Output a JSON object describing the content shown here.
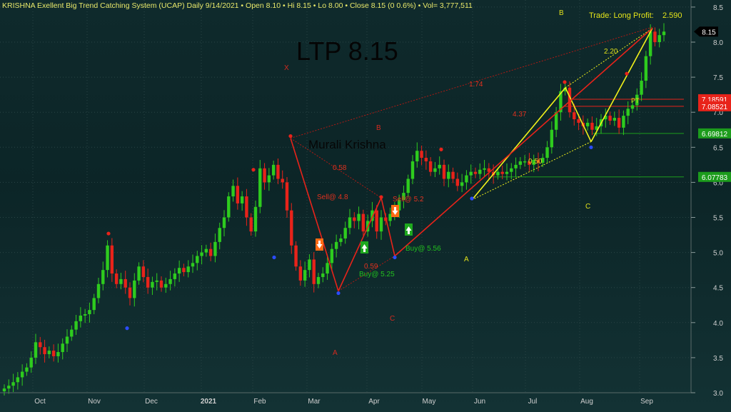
{
  "header": {
    "title": "KRISHNA Exellent Big Trend Catching System (UCAP)",
    "period": "Daily",
    "date": "9/14/2021",
    "open": "Open 8.10",
    "hi": "Hi 8.15",
    "lo": "Lo 8.00",
    "close": "Close 8.15 (0 0.6%)",
    "vol": "Vol= 3,777,511"
  },
  "ltp_text": "LTP 8.15",
  "watermark": "Murali Krishna",
  "trade_text": "Trade: Long Profit:",
  "trade_value": "2.590",
  "colors": {
    "up": "#2ecc1e",
    "down": "#e8231a",
    "pattern_red": "#e8231a",
    "pattern_yellow": "#f2f21a",
    "axis_text": "#cfcfcf"
  },
  "chart_data": {
    "type": "candlestick",
    "x_tick_labels": [
      "Oct",
      "Nov",
      "Dec",
      "2021",
      "Feb",
      "Mar",
      "Apr",
      "May",
      "Jun",
      "Jul",
      "Aug",
      "Sep"
    ],
    "y_tick_labels": [
      "3.0",
      "3.5",
      "4.0",
      "4.5",
      "5.0",
      "5.5",
      "6.0",
      "6.5",
      "7.0",
      "7.5",
      "8.0",
      "8.5"
    ],
    "ylim": [
      2.95,
      8.6
    ],
    "last_price": 8.15,
    "last_price_label": "8.15",
    "price_markers": [
      {
        "label": "7.18591",
        "value": 7.18591,
        "color": "#e8231a"
      },
      {
        "label": "7.08521",
        "value": 7.08521,
        "color": "#e8231a"
      },
      {
        "label": "6.69812",
        "value": 6.69812,
        "color": "#1c9c1c"
      },
      {
        "label": "6.07783",
        "value": 6.07783,
        "color": "#1c9c1c"
      }
    ],
    "close_series": [
      3.06,
      3.1,
      3.15,
      3.22,
      3.3,
      3.36,
      3.5,
      3.72,
      3.65,
      3.55,
      3.6,
      3.52,
      3.58,
      3.7,
      3.8,
      3.9,
      4.02,
      4.1,
      4.12,
      4.18,
      4.35,
      4.55,
      4.75,
      5.1,
      4.7,
      4.55,
      4.62,
      4.5,
      4.35,
      4.6,
      4.8,
      4.65,
      4.5,
      4.58,
      4.6,
      4.5,
      4.55,
      4.62,
      4.7,
      4.78,
      4.72,
      4.8,
      4.85,
      4.95,
      5.0,
      5.05,
      4.95,
      5.15,
      5.35,
      5.5,
      5.8,
      5.95,
      5.7,
      5.8,
      5.5,
      5.3,
      5.65,
      6.2,
      6.0,
      6.1,
      6.25,
      6.05,
      6.0,
      5.6,
      5.1,
      4.8,
      4.6,
      4.75,
      4.9,
      4.55,
      4.65,
      4.7,
      4.85,
      5.05,
      5.15,
      5.2,
      5.35,
      5.5,
      5.45,
      5.55,
      5.3,
      5.45,
      5.6,
      5.3,
      5.5,
      5.45,
      5.55,
      5.6,
      5.75,
      5.85,
      6.05,
      6.3,
      6.45,
      6.35,
      6.3,
      6.15,
      6.2,
      6.25,
      6.05,
      6.15,
      6.05,
      5.95,
      6.0,
      6.1,
      6.15,
      6.12,
      6.18,
      6.2,
      6.15,
      6.1,
      6.15,
      6.12,
      6.15,
      6.2,
      6.25,
      6.3,
      6.3,
      6.25,
      6.32,
      6.28,
      6.35,
      6.5,
      6.75,
      7.0,
      7.3,
      7.35,
      7.0,
      6.9,
      6.85,
      6.8,
      6.85,
      6.75,
      6.8,
      6.9,
      6.95,
      6.88,
      6.92,
      6.78,
      6.95,
      7.05,
      7.1,
      7.25,
      7.45,
      7.8,
      8.15,
      8.0,
      8.1,
      8.15
    ],
    "pivots": [
      {
        "label": "X",
        "value": 6.63
      },
      {
        "label": "A",
        "value": 4.45
      },
      {
        "label": "B",
        "value": 5.78
      },
      {
        "label": "C",
        "value": 4.95
      },
      {
        "label": "X",
        "value": 5.75
      },
      {
        "label": "A",
        "value": 7.35
      },
      {
        "label": "B",
        "value": 6.58
      },
      {
        "label": "C",
        "value": 8.2
      }
    ],
    "ratio_labels": [
      "0.58",
      "0.59",
      "1.74",
      "4.37",
      "0.50",
      "2.20"
    ],
    "signals": [
      {
        "type": "sell",
        "label": "Sell@ 4.8"
      },
      {
        "type": "sell",
        "label": "Sell@ 5.2"
      },
      {
        "type": "buy",
        "label": "Buy@ 5.25"
      },
      {
        "type": "buy",
        "label": "Buy@ 5.56"
      }
    ],
    "point_labels": [
      "X",
      "A",
      "B",
      "C",
      "A",
      "B",
      "C"
    ],
    "target_label": "PT"
  }
}
